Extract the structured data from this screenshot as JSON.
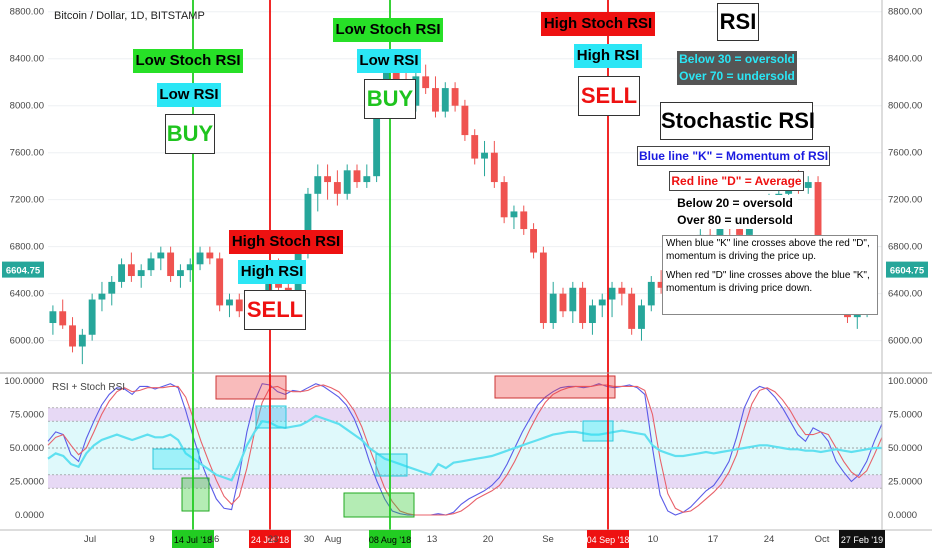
{
  "header": "Bitcoin / Dollar, 1D, BITSTAMP",
  "subheader": "RSI + Stoch RSI",
  "colors": {
    "up": "#26a69a",
    "down": "#ef5350",
    "k": "#5b5ce8",
    "d": "#e8616a",
    "rsi": "#5fe0f0",
    "green": "#22cc22",
    "red": "#ee1111"
  },
  "price_axis": [
    "8800.00",
    "8400.00",
    "8000.00",
    "7600.00",
    "7200.00",
    "6800.00",
    "6400.00",
    "6000.00"
  ],
  "indicator_axis": [
    "100.0000",
    "75.0000",
    "50.0000",
    "25.0000",
    "0.0000"
  ],
  "current_price": "6604.75",
  "time_axis": [
    "Jul",
    "9",
    "16",
    "23",
    "30",
    "Aug",
    "13",
    "20",
    "Se",
    "10",
    "17",
    "24",
    "Oct"
  ],
  "date_markers": [
    "14 Jul '18",
    "24 Jul '18",
    "08 Aug '18",
    "04 Sep '18",
    "27 Feb '19"
  ],
  "signals": [
    {
      "stoch": "Low Stoch RSI",
      "rsi": "Low RSI",
      "action": "BUY"
    },
    {
      "stoch": "High Stoch RSI",
      "rsi": "High RSI",
      "action": "SELL"
    },
    {
      "stoch": "Low Stoch RSI",
      "rsi": "Low RSI",
      "action": "BUY"
    },
    {
      "stoch": "High Stoch RSI",
      "rsi": "High RSI",
      "action": "SELL"
    }
  ],
  "legend": {
    "rsi_title": "RSI",
    "rsi_rules": [
      "Below 30 = oversold",
      "Over 70 = undersold"
    ],
    "stoch_title": "Stochastic RSI",
    "k_line": "Blue line \"K\" = Momentum of RSI",
    "d_line": "Red line \"D\" = Average",
    "stoch_rules": [
      "Below 20 = oversold",
      "Over 80 = undersold"
    ],
    "notes": [
      "When blue \"K\" line crosses above the red \"D\", momentum is driving the price up.",
      "When red \"D\" line crosses above the blue \"K\", momentum is driving price down."
    ]
  },
  "chart_data": [
    {
      "type": "candlestick",
      "title": "Bitcoin / Dollar, 1D, BITSTAMP",
      "ylim": [
        5750,
        8900
      ],
      "ohlc": [
        [
          6150,
          6300,
          6050,
          6250
        ],
        [
          6250,
          6350,
          6100,
          6130
        ],
        [
          6130,
          6200,
          5900,
          5950
        ],
        [
          5950,
          6100,
          5800,
          6050
        ],
        [
          6050,
          6400,
          6000,
          6350
        ],
        [
          6350,
          6500,
          6250,
          6400
        ],
        [
          6400,
          6550,
          6300,
          6500
        ],
        [
          6500,
          6700,
          6450,
          6650
        ],
        [
          6650,
          6750,
          6500,
          6550
        ],
        [
          6550,
          6650,
          6450,
          6600
        ],
        [
          6600,
          6750,
          6550,
          6700
        ],
        [
          6700,
          6800,
          6600,
          6750
        ],
        [
          6750,
          6800,
          6500,
          6550
        ],
        [
          6550,
          6650,
          6450,
          6600
        ],
        [
          6600,
          6700,
          6500,
          6650
        ],
        [
          6650,
          6800,
          6600,
          6750
        ],
        [
          6750,
          6800,
          6650,
          6700
        ],
        [
          6700,
          6750,
          6250,
          6300
        ],
        [
          6300,
          6400,
          6200,
          6350
        ],
        [
          6350,
          6400,
          6200,
          6250
        ],
        [
          6250,
          6300,
          6150,
          6230
        ],
        [
          6230,
          6300,
          6150,
          6250
        ],
        [
          6250,
          6600,
          6200,
          6550
        ],
        [
          6550,
          6700,
          6400,
          6450
        ],
        [
          6450,
          6600,
          6300,
          6350
        ],
        [
          6350,
          6800,
          6300,
          6750
        ],
        [
          6750,
          7300,
          6700,
          7250
        ],
        [
          7250,
          7500,
          7100,
          7400
        ],
        [
          7400,
          7500,
          7200,
          7350
        ],
        [
          7350,
          7450,
          7150,
          7250
        ],
        [
          7250,
          7500,
          7200,
          7450
        ],
        [
          7450,
          7500,
          7300,
          7350
        ],
        [
          7350,
          7500,
          7300,
          7400
        ],
        [
          7400,
          8000,
          7350,
          7950
        ],
        [
          7950,
          8450,
          7900,
          8400
        ],
        [
          8400,
          8450,
          8150,
          8200
        ],
        [
          8200,
          8300,
          7900,
          8000
        ],
        [
          8000,
          8300,
          7950,
          8250
        ],
        [
          8250,
          8350,
          8100,
          8150
        ],
        [
          8150,
          8250,
          7900,
          7950
        ],
        [
          7950,
          8200,
          7900,
          8150
        ],
        [
          8150,
          8200,
          7950,
          8000
        ],
        [
          8000,
          8050,
          7700,
          7750
        ],
        [
          7750,
          7800,
          7500,
          7550
        ],
        [
          7550,
          7700,
          7400,
          7600
        ],
        [
          7600,
          7700,
          7300,
          7350
        ],
        [
          7350,
          7400,
          7000,
          7050
        ],
        [
          7050,
          7150,
          6950,
          7100
        ],
        [
          7100,
          7150,
          6900,
          6950
        ],
        [
          6950,
          7000,
          6700,
          6750
        ],
        [
          6750,
          6800,
          6100,
          6150
        ],
        [
          6150,
          6500,
          6100,
          6400
        ],
        [
          6400,
          6450,
          6200,
          6250
        ],
        [
          6250,
          6500,
          6150,
          6450
        ],
        [
          6450,
          6500,
          6100,
          6150
        ],
        [
          6150,
          6350,
          6050,
          6300
        ],
        [
          6300,
          6400,
          6200,
          6350
        ],
        [
          6350,
          6500,
          6200,
          6450
        ],
        [
          6450,
          6500,
          6300,
          6400
        ],
        [
          6400,
          6450,
          6050,
          6100
        ],
        [
          6100,
          6350,
          6000,
          6300
        ],
        [
          6300,
          6550,
          6250,
          6500
        ],
        [
          6500,
          6600,
          6400,
          6450
        ],
        [
          6450,
          6750,
          6400,
          6700
        ],
        [
          6700,
          6800,
          6550,
          6650
        ],
        [
          6650,
          6750,
          6500,
          6700
        ],
        [
          6700,
          6950,
          6650,
          6900
        ],
        [
          6900,
          7000,
          6800,
          6850
        ],
        [
          6850,
          7100,
          6800,
          7050
        ],
        [
          7050,
          7100,
          6900,
          6950
        ],
        [
          6950,
          7050,
          6850,
          6900
        ],
        [
          6900,
          7050,
          6850,
          7000
        ],
        [
          7000,
          7200,
          6950,
          7150
        ],
        [
          7150,
          7250,
          7050,
          7200
        ],
        [
          7200,
          7300,
          7100,
          7250
        ],
        [
          7250,
          7400,
          7200,
          7350
        ],
        [
          7350,
          7450,
          7250,
          7300
        ],
        [
          7300,
          7400,
          7250,
          7350
        ],
        [
          7350,
          7400,
          6600,
          6700
        ],
        [
          6700,
          6800,
          6350,
          6450
        ],
        [
          6450,
          6550,
          6300,
          6400
        ],
        [
          6400,
          6450,
          6150,
          6200
        ],
        [
          6200,
          6300,
          6100,
          6250
        ],
        [
          6250,
          6350,
          6200,
          6300
        ]
      ]
    },
    {
      "type": "line",
      "title": "RSI + Stoch RSI",
      "ylim": [
        0,
        100
      ],
      "series": [
        {
          "name": "K",
          "values": [
            55,
            62,
            60,
            45,
            40,
            57,
            70,
            82,
            90,
            95,
            94,
            90,
            96,
            96,
            94,
            96,
            98,
            95,
            78,
            58,
            40,
            25,
            12,
            5,
            4,
            30,
            62,
            85,
            98,
            97,
            92,
            90,
            93,
            92,
            95,
            98,
            96,
            92,
            88,
            82,
            72,
            58,
            40,
            25,
            12,
            3,
            1,
            0,
            0,
            0,
            0,
            1,
            0,
            2,
            8,
            12,
            15,
            18,
            22,
            28,
            38,
            50,
            62,
            72,
            82,
            88,
            92,
            95,
            96,
            96,
            95,
            96,
            98,
            96,
            95,
            96,
            97,
            95,
            90,
            50,
            15,
            3,
            0,
            2,
            6,
            12,
            18,
            22,
            30,
            40,
            58,
            80,
            92,
            96,
            94,
            88,
            80,
            70,
            60,
            55,
            65,
            62,
            55,
            40,
            32,
            25,
            30,
            40,
            55,
            68
          ]
        },
        {
          "name": "D",
          "values": [
            52,
            58,
            60,
            52,
            45,
            50,
            62,
            75,
            85,
            92,
            95,
            92,
            93,
            95,
            95,
            95,
            96,
            96,
            88,
            72,
            55,
            40,
            26,
            14,
            8,
            14,
            35,
            62,
            84,
            95,
            96,
            93,
            92,
            92,
            93,
            96,
            97,
            95,
            92,
            86,
            78,
            66,
            50,
            35,
            20,
            10,
            3,
            1,
            0,
            0,
            0,
            0,
            0,
            1,
            3,
            7,
            12,
            15,
            18,
            22,
            30,
            40,
            52,
            64,
            75,
            84,
            90,
            93,
            95,
            96,
            96,
            96,
            97,
            97,
            96,
            96,
            96,
            96,
            93,
            75,
            42,
            16,
            5,
            2,
            3,
            7,
            12,
            17,
            23,
            32,
            45,
            65,
            83,
            93,
            95,
            92,
            86,
            78,
            68,
            60,
            60,
            62,
            60,
            50,
            40,
            32,
            28,
            33,
            45,
            58
          ]
        },
        {
          "name": "RSI",
          "values": [
            42,
            46,
            44,
            38,
            36,
            46,
            52,
            56,
            58,
            60,
            58,
            56,
            58,
            60,
            58,
            58,
            60,
            56,
            46,
            42,
            38,
            34,
            30,
            28,
            26,
            38,
            52,
            62,
            70,
            69,
            66,
            65,
            66,
            67,
            70,
            74,
            72,
            70,
            68,
            64,
            60,
            56,
            50,
            46,
            42,
            40,
            38,
            36,
            34,
            32,
            30,
            38,
            35,
            39,
            40,
            41,
            42,
            43,
            44,
            46,
            48,
            50,
            52,
            54,
            56,
            58,
            60,
            61,
            62,
            62,
            61,
            60,
            60,
            61,
            62,
            63,
            62,
            61,
            60,
            52,
            48,
            46,
            44,
            44,
            45,
            46,
            47,
            46,
            47,
            48,
            49,
            50,
            51,
            52,
            52,
            51,
            50,
            49,
            49,
            48,
            48,
            47,
            48,
            49,
            48,
            47,
            48,
            49,
            50,
            50
          ]
        }
      ]
    }
  ]
}
